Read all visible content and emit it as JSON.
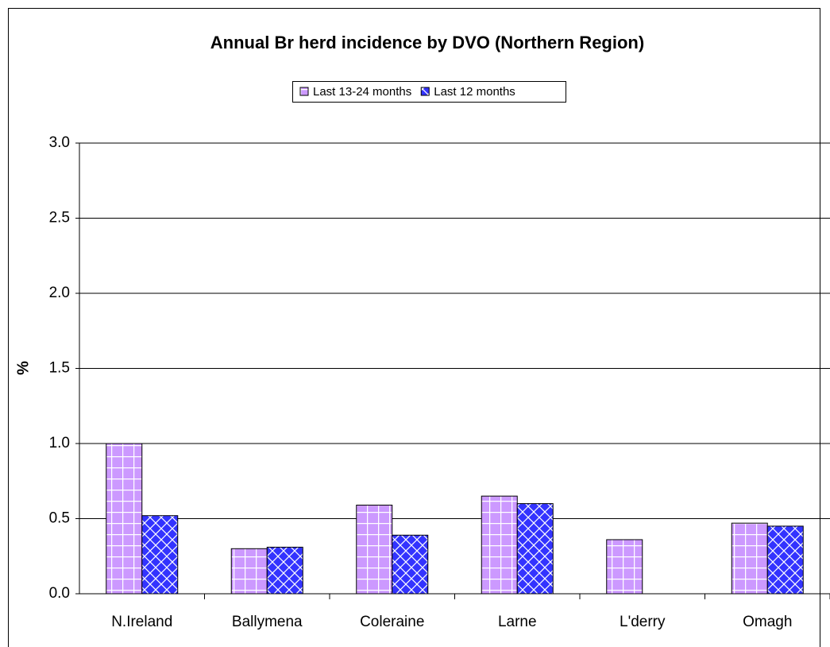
{
  "chart_data": {
    "type": "bar",
    "title": "Annual Br herd incidence by DVO (Northern Region)",
    "y_label": "%",
    "categories": [
      "N.Ireland",
      "Ballymena",
      "Coleraine",
      "Larne",
      "L'derry",
      "Omagh"
    ],
    "series": [
      {
        "name": "Last 13-24 months",
        "color": "#cc99ff",
        "values": [
          1.0,
          0.3,
          0.59,
          0.65,
          0.36,
          0.47
        ]
      },
      {
        "name": "Last 12 months",
        "color": "#3333ff",
        "values": [
          0.52,
          0.31,
          0.39,
          0.6,
          null,
          0.45
        ]
      }
    ],
    "ylim": [
      0,
      3
    ],
    "yticks": [
      {
        "value": 0,
        "label": "0.0"
      },
      {
        "value": 0.5,
        "label": "0.5"
      },
      {
        "value": 1,
        "label": "1.0"
      },
      {
        "value": 1.5,
        "label": "1.5"
      },
      {
        "value": 2,
        "label": "2.0"
      },
      {
        "value": 2.5,
        "label": "2.5"
      },
      {
        "value": 3,
        "label": "3.0"
      }
    ],
    "grid": true
  }
}
